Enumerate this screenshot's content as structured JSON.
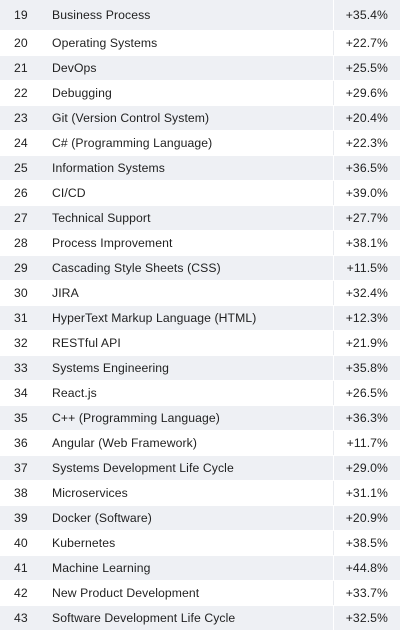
{
  "table": {
    "rows": [
      {
        "rank": "19",
        "skill": "Business Process",
        "growth": "+35.4%"
      },
      {
        "rank": "20",
        "skill": "Operating Systems",
        "growth": "+22.7%"
      },
      {
        "rank": "21",
        "skill": "DevOps",
        "growth": "+25.5%"
      },
      {
        "rank": "22",
        "skill": "Debugging",
        "growth": "+29.6%"
      },
      {
        "rank": "23",
        "skill": "Git (Version Control System)",
        "growth": "+20.4%"
      },
      {
        "rank": "24",
        "skill": "C# (Programming Language)",
        "growth": "+22.3%"
      },
      {
        "rank": "25",
        "skill": "Information Systems",
        "growth": "+36.5%"
      },
      {
        "rank": "26",
        "skill": "CI/CD",
        "growth": "+39.0%"
      },
      {
        "rank": "27",
        "skill": "Technical Support",
        "growth": "+27.7%"
      },
      {
        "rank": "28",
        "skill": "Process Improvement",
        "growth": "+38.1%"
      },
      {
        "rank": "29",
        "skill": "Cascading Style Sheets (CSS)",
        "growth": "+11.5%"
      },
      {
        "rank": "30",
        "skill": "JIRA",
        "growth": "+32.4%"
      },
      {
        "rank": "31",
        "skill": "HyperText Markup Language (HTML)",
        "growth": "+12.3%"
      },
      {
        "rank": "32",
        "skill": "RESTful API",
        "growth": "+21.9%"
      },
      {
        "rank": "33",
        "skill": "Systems Engineering",
        "growth": "+35.8%"
      },
      {
        "rank": "34",
        "skill": "React.js",
        "growth": "+26.5%"
      },
      {
        "rank": "35",
        "skill": "C++ (Programming Language)",
        "growth": "+36.3%"
      },
      {
        "rank": "36",
        "skill": "Angular (Web Framework)",
        "growth": "+11.7%"
      },
      {
        "rank": "37",
        "skill": "Systems Development Life Cycle",
        "growth": "+29.0%"
      },
      {
        "rank": "38",
        "skill": "Microservices",
        "growth": "+31.1%"
      },
      {
        "rank": "39",
        "skill": "Docker (Software)",
        "growth": "+20.9%"
      },
      {
        "rank": "40",
        "skill": "Kubernetes",
        "growth": "+38.5%"
      },
      {
        "rank": "41",
        "skill": "Machine Learning",
        "growth": "+44.8%"
      },
      {
        "rank": "42",
        "skill": "New Product Development",
        "growth": "+33.7%"
      },
      {
        "rank": "43",
        "skill": "Software Development Life Cycle",
        "growth": "+32.5%"
      }
    ],
    "colors": {
      "stripe": "#eef0f4",
      "background": "#ffffff",
      "text": "#1f1f1f"
    }
  }
}
